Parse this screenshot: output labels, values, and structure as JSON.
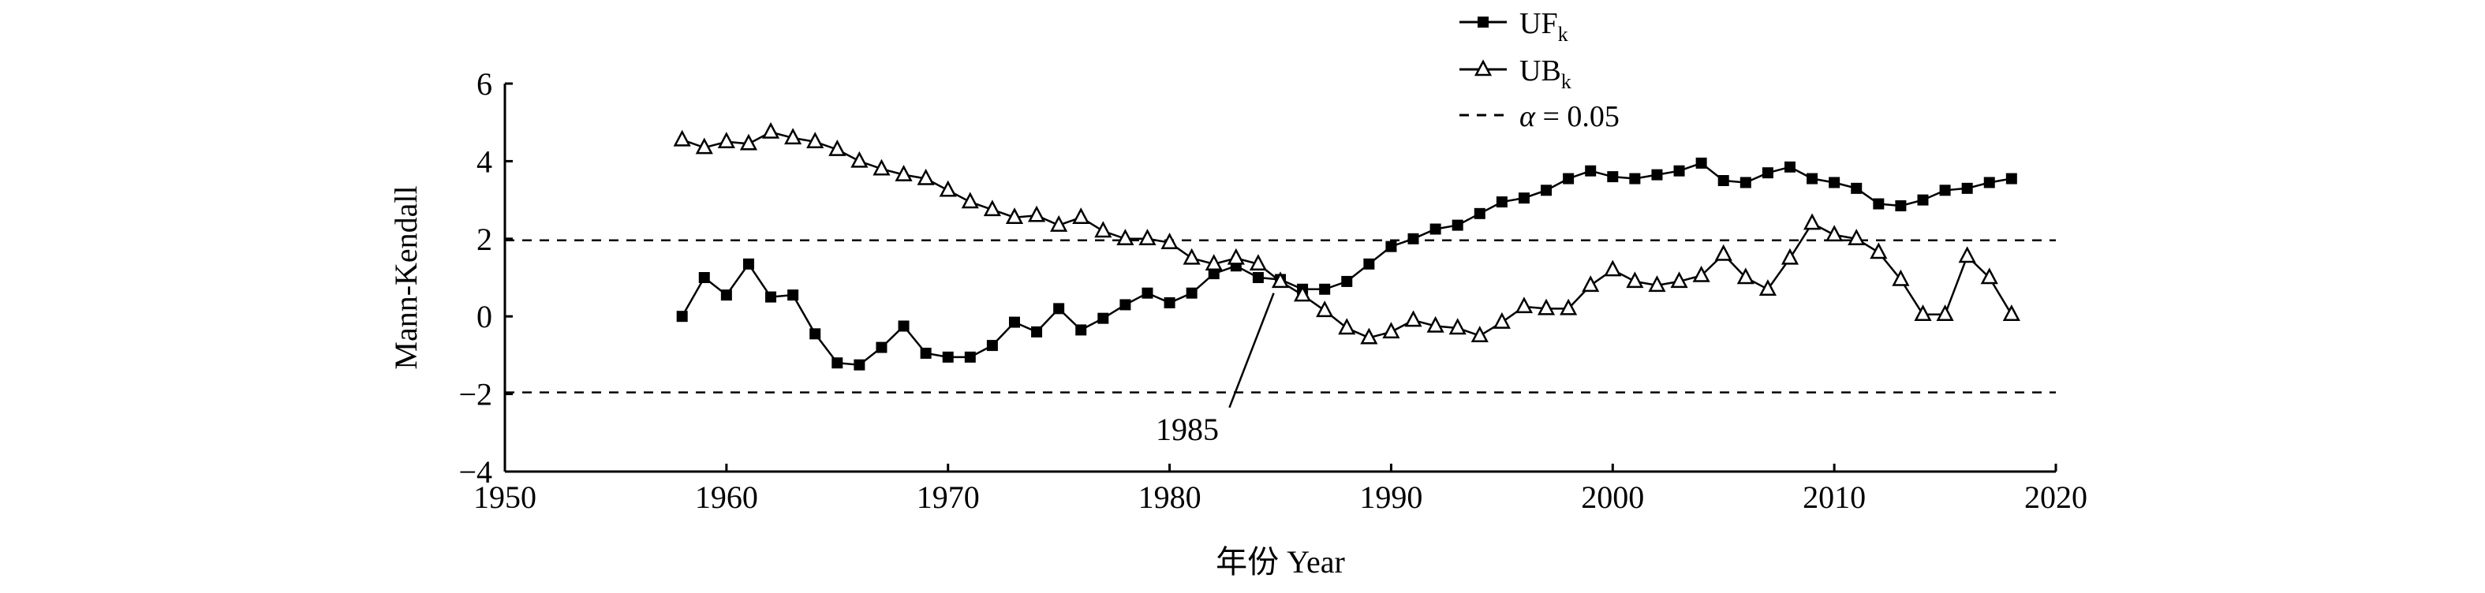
{
  "chart_data": {
    "type": "line",
    "xlabel": "年份 Year",
    "ylabel": "Mann-Kendall",
    "xlim": [
      1950,
      2020
    ],
    "ylim": [
      -4,
      6
    ],
    "xticks": [
      1950,
      1960,
      1970,
      1980,
      1990,
      2000,
      2010,
      2020
    ],
    "yticks": [
      -4,
      -2,
      0,
      2,
      4,
      6
    ],
    "x": [
      1958,
      1959,
      1960,
      1961,
      1962,
      1963,
      1964,
      1965,
      1966,
      1967,
      1968,
      1969,
      1970,
      1971,
      1972,
      1973,
      1974,
      1975,
      1976,
      1977,
      1978,
      1979,
      1980,
      1981,
      1982,
      1983,
      1984,
      1985,
      1986,
      1987,
      1988,
      1989,
      1990,
      1991,
      1992,
      1993,
      1994,
      1995,
      1996,
      1997,
      1998,
      1999,
      2000,
      2001,
      2002,
      2003,
      2004,
      2005,
      2006,
      2007,
      2008,
      2009,
      2010,
      2011,
      2012,
      2013,
      2014,
      2015,
      2016,
      2017,
      2018
    ],
    "series": [
      {
        "name": "UF",
        "name_sub": "k",
        "marker": "square",
        "values": [
          0.0,
          1.0,
          0.55,
          1.35,
          0.5,
          0.55,
          -0.45,
          -1.2,
          -1.25,
          -0.8,
          -0.25,
          -0.95,
          -1.05,
          -1.05,
          -0.75,
          -0.15,
          -0.4,
          0.2,
          -0.35,
          -0.05,
          0.3,
          0.6,
          0.35,
          0.6,
          1.1,
          1.3,
          1.0,
          0.95,
          0.7,
          0.7,
          0.9,
          1.35,
          1.8,
          2.0,
          2.25,
          2.35,
          2.65,
          2.95,
          3.05,
          3.25,
          3.55,
          3.75,
          3.6,
          3.55,
          3.65,
          3.75,
          3.95,
          3.5,
          3.45,
          3.7,
          3.85,
          3.55,
          3.45,
          3.3,
          2.9,
          2.85,
          3.0,
          3.25,
          3.3,
          3.45,
          3.55
        ]
      },
      {
        "name": "UB",
        "name_sub": "k",
        "marker": "triangle-open",
        "values": [
          4.55,
          4.35,
          4.5,
          4.45,
          4.75,
          4.6,
          4.5,
          4.3,
          4.0,
          3.8,
          3.65,
          3.55,
          3.25,
          2.95,
          2.75,
          2.55,
          2.6,
          2.35,
          2.55,
          2.2,
          2.0,
          2.0,
          1.9,
          1.5,
          1.35,
          1.5,
          1.35,
          0.9,
          0.55,
          0.15,
          -0.3,
          -0.55,
          -0.4,
          -0.1,
          -0.25,
          -0.3,
          -0.5,
          -0.15,
          0.25,
          0.2,
          0.2,
          0.8,
          1.2,
          0.9,
          0.8,
          0.9,
          1.05,
          1.6,
          1.0,
          0.7,
          1.5,
          2.4,
          2.1,
          2.0,
          1.65,
          0.95,
          0.05,
          0.05,
          1.55,
          1.0,
          0.05
        ]
      }
    ],
    "reference_lines": {
      "name": "α = 0.05",
      "name_symbol": "α",
      "name_rest": " = 0.05",
      "values": [
        1.96,
        -1.96
      ],
      "style": "dashed"
    },
    "annotations": [
      {
        "text": "1985",
        "x": 1985,
        "y": 0.95
      }
    ],
    "legend": "top-right",
    "grid": false
  }
}
